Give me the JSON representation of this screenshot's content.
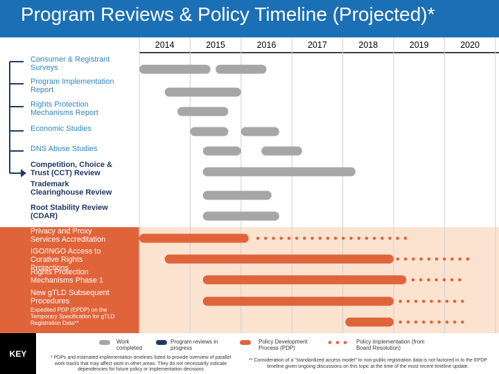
{
  "title": "Program Reviews & Policy Timeline (Projected)*",
  "colors": {
    "title_bar": "#1b6fb5",
    "completed": "#a6a6a6",
    "in_progress": "#1f3864",
    "pdp": "#e0643a",
    "pdp_band": "#fbe3d0",
    "label_blue": "#2e86c1",
    "label_dark": "#1f3864"
  },
  "chart_data": {
    "type": "gantt",
    "years": [
      "2014",
      "2015",
      "2016",
      "2017",
      "2018",
      "2019",
      "2020"
    ],
    "rows": [
      {
        "label": "Consumer & Registrant Surveys",
        "group": "review",
        "style": "blue",
        "bars": [
          {
            "start": 2014.0,
            "end": 2015.4,
            "status": "completed"
          },
          {
            "start": 2015.5,
            "end": 2016.5,
            "status": "completed"
          }
        ]
      },
      {
        "label": "Program Implementation Report",
        "group": "review",
        "style": "blue",
        "bars": [
          {
            "start": 2014.5,
            "end": 2016.0,
            "status": "completed"
          }
        ]
      },
      {
        "label": "Rights Protection Mechanisms Report",
        "group": "review",
        "style": "blue",
        "bars": [
          {
            "start": 2014.75,
            "end": 2015.75,
            "status": "completed"
          }
        ]
      },
      {
        "label": "Economic Studies",
        "group": "review",
        "style": "blue",
        "bars": [
          {
            "start": 2015.0,
            "end": 2015.75,
            "status": "completed"
          },
          {
            "start": 2016.0,
            "end": 2016.75,
            "status": "completed"
          }
        ]
      },
      {
        "label": "DNS Abuse Studies",
        "group": "review",
        "style": "blue",
        "bars": [
          {
            "start": 2015.25,
            "end": 2016.0,
            "status": "completed"
          },
          {
            "start": 2016.4,
            "end": 2017.2,
            "status": "completed"
          }
        ]
      },
      {
        "label": "Competition, Choice & Trust (CCT) Review",
        "group": "review",
        "style": "bold",
        "bars": [
          {
            "start": 2015.25,
            "end": 2018.25,
            "status": "completed"
          }
        ]
      },
      {
        "label": "Trademark Clearinghouse Review",
        "group": "review",
        "style": "bold",
        "bars": [
          {
            "start": 2015.25,
            "end": 2016.6,
            "status": "completed"
          }
        ]
      },
      {
        "label": "Root Stability Review (CDAR)",
        "group": "review",
        "style": "bold",
        "bars": [
          {
            "start": 2015.25,
            "end": 2016.75,
            "status": "completed"
          }
        ]
      },
      {
        "label": "Privacy and Proxy Services Accreditation",
        "group": "pdp",
        "bars": [
          {
            "start": 2014.0,
            "end": 2016.15,
            "status": "pdp",
            "arrow_left": true
          }
        ],
        "implementation": {
          "start": 2016.25,
          "end": 2019.3
        }
      },
      {
        "label": "IGO/INGO Access to Curative Rights Protections",
        "group": "pdp",
        "bars": [
          {
            "start": 2014.5,
            "end": 2019.0,
            "status": "pdp"
          }
        ],
        "implementation": {
          "start": 2019.0,
          "end": 2020.5
        }
      },
      {
        "label": "Rights Protection Mechanisms Phase 1",
        "group": "pdp",
        "bars": [
          {
            "start": 2015.25,
            "end": 2019.25,
            "status": "pdp"
          }
        ],
        "implementation": {
          "start": 2019.3,
          "end": 2020.3
        }
      },
      {
        "label": "New gTLD Subsequent Procedures",
        "group": "pdp",
        "bars": [
          {
            "start": 2015.25,
            "end": 2019.0,
            "status": "pdp"
          }
        ],
        "implementation": {
          "start": 2019.05,
          "end": 2020.5
        }
      },
      {
        "label": "Expedited PDP (EPDP) on the Temporary Specification for gTLD Registration Data**",
        "group": "pdp",
        "style": "small",
        "bars": [
          {
            "start": 2018.05,
            "end": 2019.0,
            "status": "pdp"
          }
        ],
        "implementation": {
          "start": 2019.05,
          "end": 2020.5
        }
      }
    ]
  },
  "key": {
    "label": "KEY",
    "completed": "Work completed",
    "in_progress": "Program reviews in progress",
    "pdp": "Policy Development Process (PDP)",
    "implementation": "Policy implementation (from Board Resolution)"
  },
  "notes": {
    "left": "* PDPs and estimated implementation timelines listed to provide overview of parallel work tracks that may affect work in other areas. They do not necessarily indicate dependencies for future policy or implementation decisions",
    "right": "** Consideration of a \"standardized access model\" to non-public registration data is not factored in to the EPDP timeline given ongoing discussions on this topic at the time of the most recent timeline update."
  }
}
